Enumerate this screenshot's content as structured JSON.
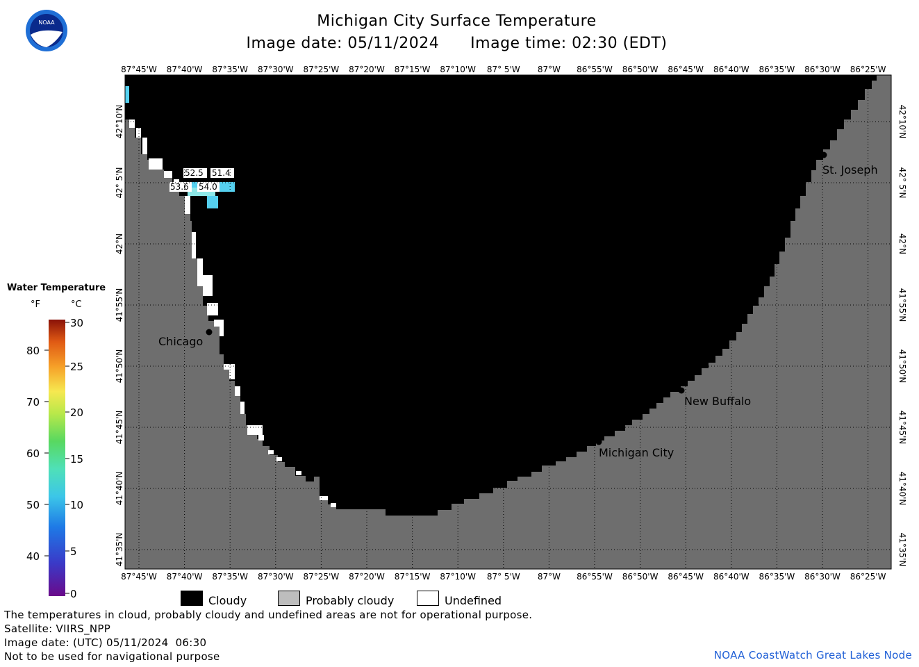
{
  "header": {
    "title": "Michigan City Surface Temperature",
    "subtitle_date": "Image date: 05/11/2024",
    "subtitle_time": "Image time: 02:30 (EDT)"
  },
  "logo": {
    "text": "NOAA",
    "colors": {
      "ring": "#1f6fd6",
      "bird": "#ffffff",
      "sky": "#0a2a8c"
    }
  },
  "map": {
    "lon_labels": [
      "87°45'W",
      "87°40'W",
      "87°35'W",
      "87°30'W",
      "87°25'W",
      "87°20'W",
      "87°15'W",
      "87°10'W",
      "87° 5'W",
      "87°W",
      "86°55'W",
      "86°50'W",
      "86°45'W",
      "86°40'W",
      "86°35'W",
      "86°30'W",
      "86°25'W"
    ],
    "lat_labels": [
      "42°10'N",
      "42° 5'N",
      "42°N",
      "41°55'N",
      "41°50'N",
      "41°45'N",
      "41°40'N",
      "41°35'N"
    ],
    "cities": [
      {
        "name": "Chicago"
      },
      {
        "name": "St. Joseph"
      },
      {
        "name": "New Buffalo"
      },
      {
        "name": "Michigan City"
      }
    ],
    "temp_labels": [
      "52.5",
      "51.4",
      "53.6",
      "54.0"
    ],
    "colors": {
      "cloudy": "#000000",
      "land": "#6e6e6e",
      "undefined": "#ffffff",
      "water_warm": "#8ee8e8",
      "water": "#55d0ef"
    }
  },
  "legend": {
    "title": "Water Temperature",
    "unit_f": "°F",
    "unit_c": "°C",
    "f_ticks": [
      "80",
      "70",
      "60",
      "50",
      "40"
    ],
    "c_ticks": [
      "30",
      "25",
      "20",
      "15",
      "10",
      "5",
      "0"
    ]
  },
  "key": {
    "cloudy": "Cloudy",
    "probably_cloudy": "Probably cloudy",
    "undefined": "Undefined",
    "colors": {
      "cloudy": "#000000",
      "probably_cloudy": "#bdbdbd",
      "undefined": "#ffffff"
    }
  },
  "footer": {
    "line1": "The temperatures in cloud, probably cloudy and undefined areas are not for operational purpose.",
    "line2": "Satellite: VIIRS_NPP",
    "line3": "Image date: (UTC) 05/11/2024  06:30",
    "line4": "Not to be used for navigational purpose",
    "credit": "NOAA CoastWatch Great Lakes Node"
  }
}
